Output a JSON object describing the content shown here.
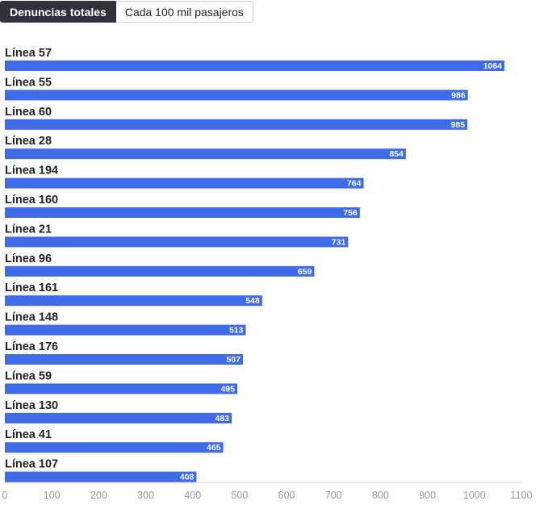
{
  "tabs": [
    {
      "label": "Denuncias totales",
      "active": true
    },
    {
      "label": "Cada 100 mil pasajeros",
      "active": false
    }
  ],
  "colors": {
    "bar": "#3f6be8",
    "axis": "#cfcfcf",
    "tick_text": "#9a9a9a"
  },
  "chart_data": {
    "type": "bar",
    "orientation": "horizontal",
    "categories": [
      "Línea 57",
      "Línea 55",
      "Línea 60",
      "Línea 28",
      "Línea 194",
      "Línea 160",
      "Línea 21",
      "Línea 96",
      "Línea 161",
      "Línea 148",
      "Línea 176",
      "Línea 59",
      "Línea 130",
      "Línea 41",
      "Línea 107"
    ],
    "values": [
      1064,
      986,
      985,
      854,
      764,
      756,
      731,
      659,
      548,
      513,
      507,
      495,
      483,
      465,
      408
    ],
    "xlim": [
      0,
      1100
    ],
    "xticks": [
      "0",
      "100",
      "200",
      "300",
      "400",
      "500",
      "600",
      "700",
      "800",
      "900",
      "1000",
      "1100"
    ],
    "title": "",
    "xlabel": "",
    "ylabel": "",
    "data_labels": true,
    "grid": false
  }
}
